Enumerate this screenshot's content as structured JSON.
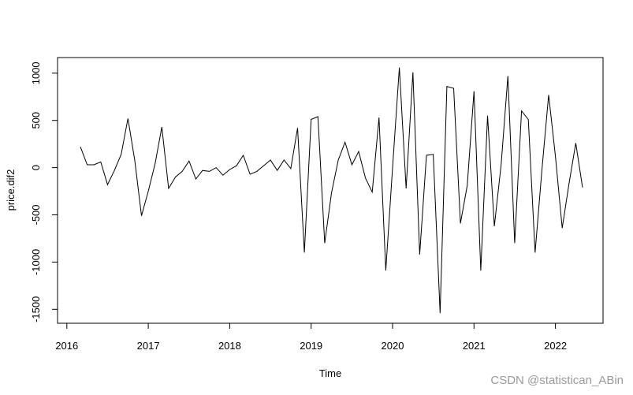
{
  "chart_data": {
    "type": "line",
    "title": "",
    "xlabel": "Time",
    "ylabel": "price.dif2",
    "xlim": [
      2016.0,
      2022.6
    ],
    "ylim": [
      -1550,
      1070
    ],
    "x_ticks": [
      2016,
      2017,
      2018,
      2019,
      2020,
      2021,
      2022
    ],
    "x_tick_labels": [
      "2016",
      "2017",
      "2018",
      "2019",
      "2020",
      "2021",
      "2022"
    ],
    "y_ticks": [
      -1500,
      -1000,
      -500,
      0,
      500,
      1000
    ],
    "y_tick_labels": [
      "-1500",
      "-1000",
      "-500",
      "0",
      "500",
      "1000"
    ],
    "grid": false,
    "line_color": "#000000",
    "series": [
      {
        "x": [
          2016.1667,
          2016.25,
          2016.3333,
          2016.4167,
          2016.5,
          2016.5833,
          2016.6667,
          2016.75,
          2016.8333,
          2016.9167,
          2017.0,
          2017.0833,
          2017.1667,
          2017.25,
          2017.3333,
          2017.4167,
          2017.5,
          2017.5833,
          2017.6667,
          2017.75,
          2017.8333,
          2017.9167,
          2018.0,
          2018.0833,
          2018.1667,
          2018.25,
          2018.3333,
          2018.4167,
          2018.5,
          2018.5833,
          2018.6667,
          2018.75,
          2018.8333,
          2018.9167,
          2019.0,
          2019.0833,
          2019.1667,
          2019.25,
          2019.3333,
          2019.4167,
          2019.5,
          2019.5833,
          2019.6667,
          2019.75,
          2019.8333,
          2019.9167,
          2020.0,
          2020.0833,
          2020.1667,
          2020.25,
          2020.3333,
          2020.4167,
          2020.5,
          2020.5833,
          2020.6667,
          2020.75,
          2020.8333,
          2020.9167,
          2021.0,
          2021.0833,
          2021.1667,
          2021.25,
          2021.3333,
          2021.4167,
          2021.5,
          2021.5833,
          2021.6667,
          2021.75,
          2021.8333,
          2021.9167,
          2022.0,
          2022.0833,
          2022.1667,
          2022.25,
          2022.3333
        ],
        "values": [
          220,
          30,
          30,
          60,
          -180,
          -30,
          140,
          520,
          80,
          -510,
          -250,
          40,
          430,
          -220,
          -100,
          -40,
          70,
          -120,
          -30,
          -40,
          0,
          -80,
          -20,
          20,
          130,
          -70,
          -40,
          20,
          80,
          -30,
          80,
          -10,
          420,
          -900,
          510,
          540,
          -800,
          -270,
          80,
          270,
          30,
          170,
          -110,
          -260,
          530,
          -1090,
          0,
          1060,
          -220,
          1010,
          -920,
          130,
          140,
          -1540,
          860,
          840,
          -590,
          -190,
          810,
          -1090,
          550,
          -620,
          30,
          970,
          -800,
          600,
          510,
          -900,
          -30,
          770,
          120,
          -640,
          -170,
          260,
          -210
        ]
      }
    ]
  },
  "watermark_text": "CSDN @statistican_ABin"
}
